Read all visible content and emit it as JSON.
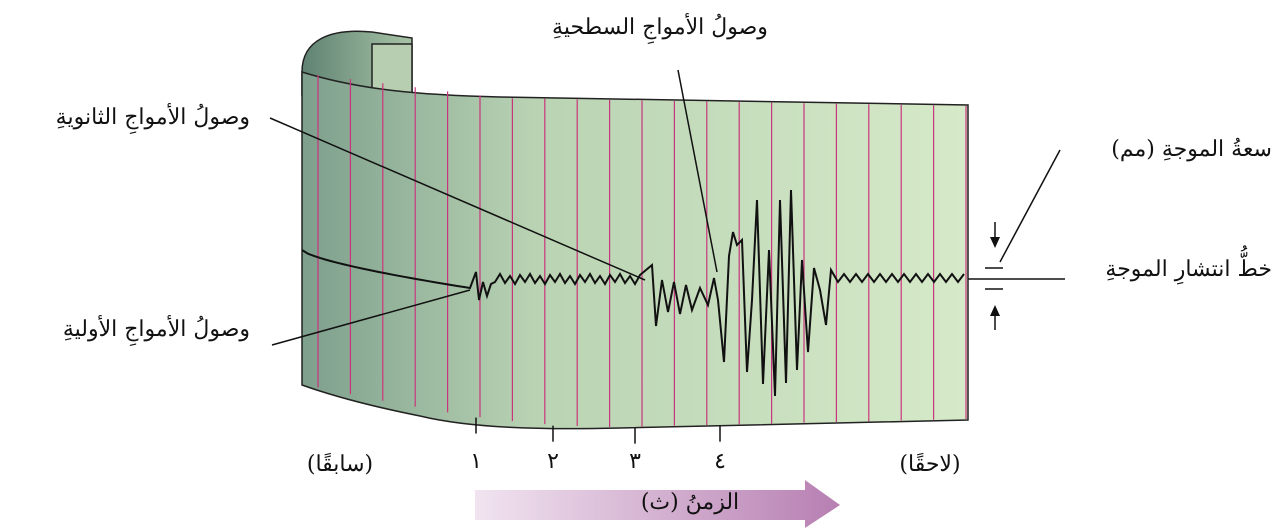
{
  "labels": {
    "surface": "وصولُ الأمواجِ السطحيةِ",
    "secondary": "وصولُ الأمواجِ الثانويةِ",
    "primary": "وصولُ الأمواجِ الأوليةِ",
    "amplitude": "سعةُ الموجةِ (مم)",
    "baseline": "خطُّ انتشارِ الموجةِ",
    "earlier": "(سابقًا)",
    "later": "(لاحقًا)",
    "time": "الزمنُ (ث)"
  },
  "ticks": [
    "١",
    "٢",
    "٣",
    "٤"
  ]
}
